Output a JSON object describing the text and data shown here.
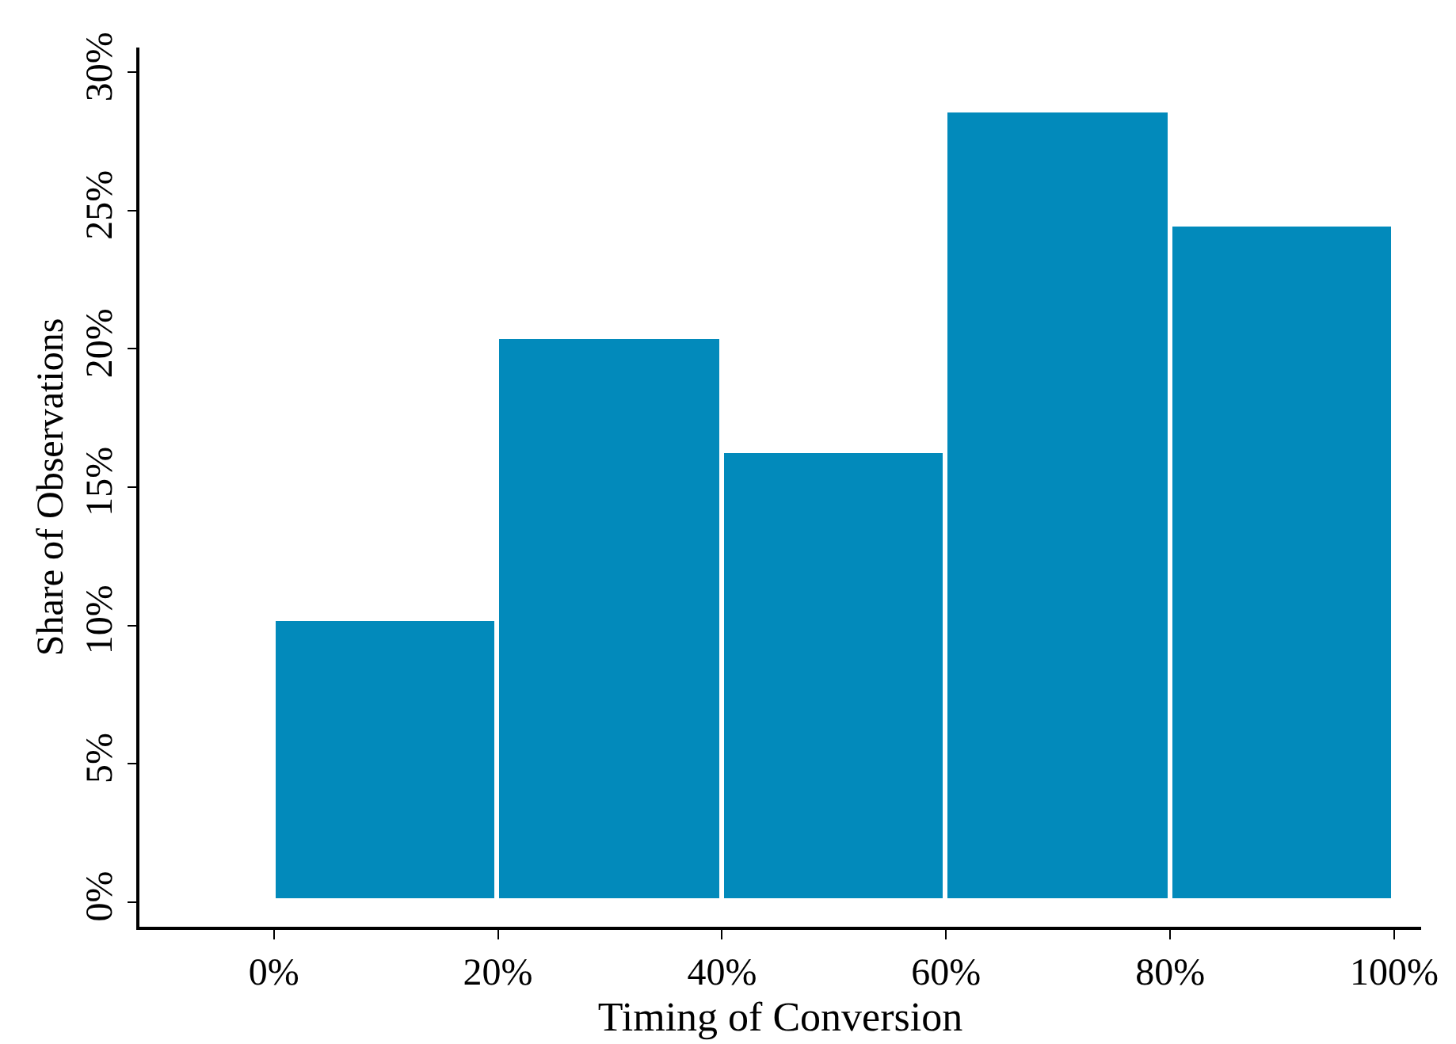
{
  "chart_data": {
    "type": "histogram",
    "xlabel": "Timing of Conversion",
    "ylabel": "Share of Observations",
    "bins": [
      0,
      20,
      40,
      60,
      80,
      100
    ],
    "values": [
      10.2,
      20.4,
      16.3,
      28.6,
      24.5
    ],
    "color": "#028abb",
    "xlim": [
      -12,
      102.4
    ],
    "ylim": [
      -0.9,
      30.9
    ],
    "xticks": [
      {
        "value": 0,
        "label": "0%"
      },
      {
        "value": 20,
        "label": "20%"
      },
      {
        "value": 40,
        "label": "40%"
      },
      {
        "value": 60,
        "label": "60%"
      },
      {
        "value": 80,
        "label": "80%"
      },
      {
        "value": 100,
        "label": "100%"
      }
    ],
    "yticks": [
      {
        "value": 0,
        "label": "0%"
      },
      {
        "value": 5,
        "label": "5%"
      },
      {
        "value": 10,
        "label": "10%"
      },
      {
        "value": 15,
        "label": "15%"
      },
      {
        "value": 20,
        "label": "20%"
      },
      {
        "value": 25,
        "label": "25%"
      },
      {
        "value": 30,
        "label": "30%"
      }
    ]
  }
}
